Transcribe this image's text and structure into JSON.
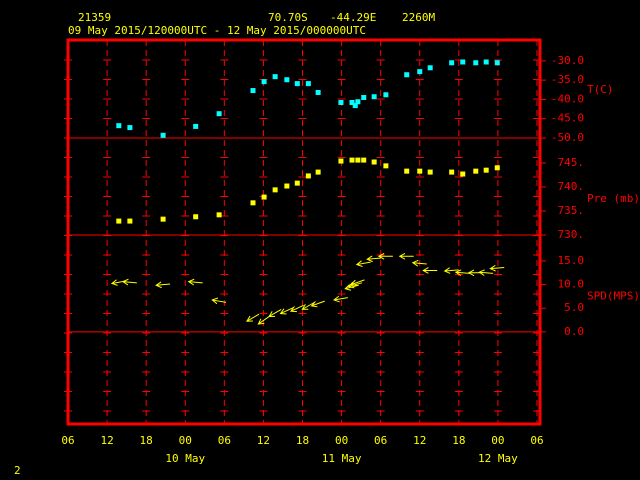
{
  "header": {
    "station": "21359",
    "lat": "70.70S",
    "lon": "-44.29E",
    "elev": "2260M",
    "period": "09 May 2015/120000UTC - 12 May 2015/000000UTC"
  },
  "footer": "2",
  "chart_data": [
    {
      "type": "scatter",
      "ylabel": "T(C)",
      "color": "#00ffff",
      "x": [
        13.8,
        15.5,
        20.6,
        25.6,
        29.2,
        34.4,
        36.1,
        37.8,
        39.6,
        41.2,
        42.9,
        44.4,
        47.9,
        49.6,
        50.1,
        50.5,
        51.4,
        53.0,
        54.8,
        58.0,
        60.0,
        61.6,
        64.9,
        66.6,
        68.6,
        70.2,
        71.9
      ],
      "values": [
        -46.8,
        -47.3,
        -49.3,
        -47.0,
        -43.7,
        -37.7,
        -35.4,
        -34.1,
        -34.9,
        -35.9,
        -35.9,
        -38.2,
        -40.8,
        -40.8,
        -41.6,
        -40.6,
        -39.5,
        -39.3,
        -38.8,
        -33.6,
        -32.8,
        -31.8,
        -30.5,
        -30.3,
        -30.5,
        -30.3,
        -30.5
      ],
      "ylim": [
        -50,
        -24.6
      ],
      "yticks": [
        {
          "value": -30,
          "label": "-30.0"
        },
        {
          "value": -35,
          "label": "-35.0"
        },
        {
          "value": -40,
          "label": "-40.0"
        },
        {
          "value": -45,
          "label": "-45.0"
        },
        {
          "value": -50,
          "label": "-50.0"
        }
      ]
    },
    {
      "type": "scatter",
      "ylabel": "Pre (mb)",
      "color": "#ffff00",
      "x": [
        13.8,
        15.5,
        20.6,
        25.6,
        29.2,
        34.4,
        36.1,
        37.8,
        39.6,
        41.2,
        42.9,
        44.4,
        47.9,
        49.6,
        50.5,
        51.4,
        53.0,
        54.8,
        58.0,
        60.0,
        61.6,
        64.9,
        66.6,
        68.6,
        70.2,
        71.9
      ],
      "values": [
        732.9,
        732.9,
        733.3,
        733.8,
        734.2,
        736.7,
        737.9,
        739.4,
        740.2,
        740.8,
        742.3,
        743.1,
        745.4,
        745.6,
        745.6,
        745.6,
        745.2,
        744.4,
        743.3,
        743.3,
        743.1,
        743.1,
        742.7,
        743.3,
        743.5,
        744.0
      ],
      "ylim": [
        730,
        750.2
      ],
      "yticks": [
        {
          "value": 745,
          "label": "745."
        },
        {
          "value": 740,
          "label": "740."
        },
        {
          "value": 735,
          "label": "735."
        },
        {
          "value": 730,
          "label": "730."
        }
      ]
    },
    {
      "type": "wind",
      "ylabel": "SPD(MPS)",
      "color": "#ffff00",
      "x": [
        13.8,
        15.5,
        20.6,
        25.6,
        29.2,
        34.4,
        36.1,
        37.8,
        39.6,
        41.2,
        42.9,
        44.4,
        47.9,
        49.6,
        50.1,
        50.5,
        51.4,
        53.0,
        54.8,
        58.0,
        60.0,
        61.6,
        64.9,
        66.6,
        68.6,
        70.2,
        71.9
      ],
      "values": [
        10.5,
        10.5,
        10,
        10.5,
        6.5,
        3,
        2.5,
        4,
        4.5,
        5,
        5.5,
        6,
        7,
        9.5,
        10,
        10.5,
        14.5,
        15.5,
        16,
        16,
        14.5,
        13,
        13,
        12.5,
        12.5,
        12.5,
        13.5
      ],
      "directions": [
        80,
        95,
        85,
        95,
        100,
        60,
        55,
        60,
        65,
        65,
        60,
        70,
        80,
        75,
        75,
        70,
        80,
        85,
        90,
        90,
        95,
        90,
        85,
        95,
        90,
        95,
        85
      ],
      "ylim": [
        -19.5,
        20.5
      ],
      "yticks": [
        {
          "value": 15,
          "label": "15.0"
        },
        {
          "value": 10,
          "label": "10.0"
        },
        {
          "value": 5,
          "label": "5.0"
        },
        {
          "value": 0,
          "label": "0.0"
        }
      ],
      "hline": 0,
      "xlim": [
        6,
        78
      ],
      "xticks": [
        {
          "value": 6,
          "label": "06"
        },
        {
          "value": 12,
          "label": "12"
        },
        {
          "value": 18,
          "label": "18"
        },
        {
          "value": 24,
          "label": "00"
        },
        {
          "value": 30,
          "label": "06"
        },
        {
          "value": 36,
          "label": "12"
        },
        {
          "value": 42,
          "label": "18"
        },
        {
          "value": 48,
          "label": "00"
        },
        {
          "value": 54,
          "label": "06"
        },
        {
          "value": 60,
          "label": "12"
        },
        {
          "value": 66,
          "label": "18"
        },
        {
          "value": 72,
          "label": "00"
        },
        {
          "value": 78,
          "label": "06"
        }
      ],
      "day_labels": [
        {
          "value": 24,
          "label": "10 May"
        },
        {
          "value": 48,
          "label": "11 May"
        },
        {
          "value": 72,
          "label": "12 May"
        }
      ]
    }
  ]
}
